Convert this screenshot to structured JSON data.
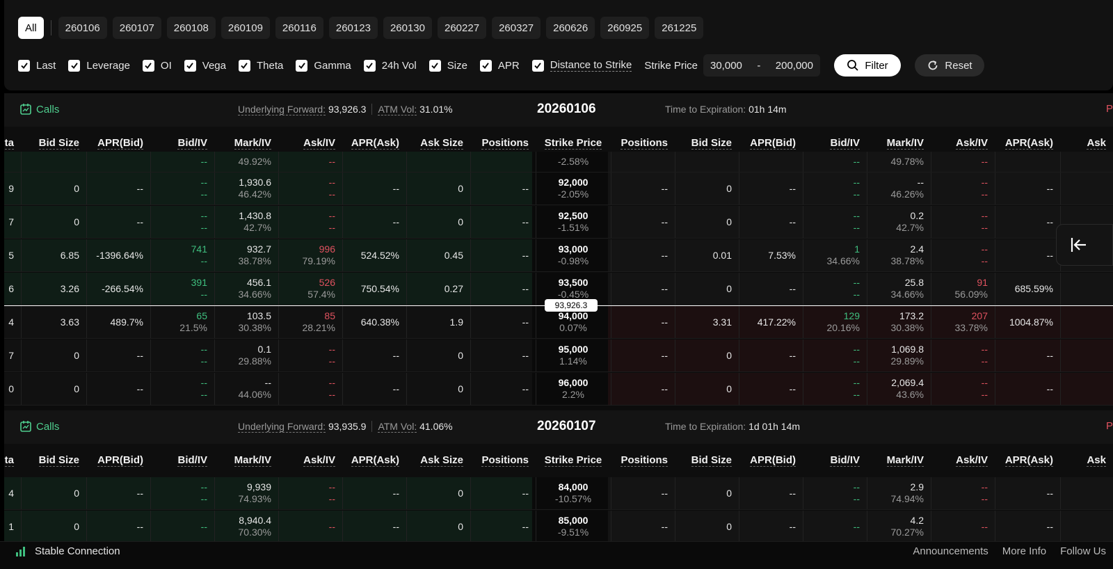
{
  "tabs": [
    "All",
    "260106",
    "260107",
    "260108",
    "260109",
    "260116",
    "260123",
    "260130",
    "260227",
    "260327",
    "260626",
    "260925",
    "261225"
  ],
  "columns_toggle": [
    {
      "label": "Last",
      "checked": true
    },
    {
      "label": "Leverage",
      "checked": true
    },
    {
      "label": "OI",
      "checked": true
    },
    {
      "label": "Vega",
      "checked": true
    },
    {
      "label": "Theta",
      "checked": true
    },
    {
      "label": "Gamma",
      "checked": true
    },
    {
      "label": "24h Vol",
      "checked": true
    },
    {
      "label": "Size",
      "checked": true
    },
    {
      "label": "APR",
      "checked": true
    },
    {
      "label": "Distance to Strike",
      "checked": true
    }
  ],
  "strike_filter": {
    "label": "Strike Price",
    "min": "30,000",
    "dash": "-",
    "max": "200,000",
    "filter_label": "Filter",
    "reset_label": "Reset"
  },
  "headers": [
    "ta",
    "Bid Size",
    "APR(Bid)",
    "Bid/IV",
    "Mark/IV",
    "Ask/IV",
    "APR(Ask)",
    "Ask Size",
    "Positions",
    "Strike Price",
    "Positions",
    "Bid Size",
    "APR(Bid)",
    "Bid/IV",
    "Mark/IV",
    "Ask/IV",
    "APR(Ask)",
    "Ask"
  ],
  "sections": [
    {
      "calls_label": "Calls",
      "forward_label": "Underlying Forward:",
      "forward_value": "93,926.3",
      "atm_label": "ATM Vol:",
      "atm_value": "31.01%",
      "date": "20260106",
      "tte_label": "Time to Expiration:",
      "tte_value": "01h 14m",
      "puts_label": "P",
      "rows": [
        {
          "cls": "itm",
          "c": [
            [
              "",
              ""
            ],
            [
              "",
              ""
            ],
            [
              "",
              ""
            ],
            [
              "--",
              ""
            ],
            [
              "49.92%",
              ""
            ],
            [
              "--",
              ""
            ],
            [
              "",
              ""
            ],
            [
              "",
              ""
            ],
            [
              "",
              ""
            ],
            [
              "-2.58%",
              ""
            ],
            [
              "",
              ""
            ],
            [
              "",
              ""
            ],
            [
              "",
              ""
            ],
            [
              "--",
              ""
            ],
            [
              "49.78%",
              ""
            ],
            [
              "--",
              ""
            ],
            [
              "",
              ""
            ],
            [
              "",
              ""
            ]
          ],
          "partial": true
        },
        {
          "cls": "itm",
          "c": [
            [
              "9",
              ""
            ],
            [
              "0",
              ""
            ],
            [
              "--",
              ""
            ],
            [
              "--",
              "--"
            ],
            [
              "1,930.6",
              "46.42%"
            ],
            [
              "--",
              "--"
            ],
            [
              "--",
              ""
            ],
            [
              "0",
              ""
            ],
            [
              "--",
              ""
            ],
            [
              "92,000",
              "-2.05%"
            ],
            [
              "--",
              ""
            ],
            [
              "0",
              ""
            ],
            [
              "--",
              ""
            ],
            [
              "--",
              "--"
            ],
            [
              "--",
              "46.26%"
            ],
            [
              "--",
              "--"
            ],
            [
              "--",
              ""
            ],
            [
              "",
              ""
            ]
          ]
        },
        {
          "cls": "itm",
          "c": [
            [
              "7",
              ""
            ],
            [
              "0",
              ""
            ],
            [
              "--",
              ""
            ],
            [
              "--",
              "--"
            ],
            [
              "1,430.8",
              "42.7%"
            ],
            [
              "--",
              "--"
            ],
            [
              "--",
              ""
            ],
            [
              "0",
              ""
            ],
            [
              "--",
              ""
            ],
            [
              "92,500",
              "-1.51%"
            ],
            [
              "--",
              ""
            ],
            [
              "0",
              ""
            ],
            [
              "--",
              ""
            ],
            [
              "--",
              "--"
            ],
            [
              "0.2",
              "42.7%"
            ],
            [
              "--",
              "--"
            ],
            [
              "--",
              ""
            ],
            [
              "",
              ""
            ]
          ]
        },
        {
          "cls": "itm",
          "c": [
            [
              "5",
              ""
            ],
            [
              "6.85",
              ""
            ],
            [
              "-1396.64%",
              ""
            ],
            [
              "741",
              "--"
            ],
            [
              "932.7",
              "38.78%"
            ],
            [
              "996",
              "79.19%"
            ],
            [
              "524.52%",
              ""
            ],
            [
              "0.45",
              ""
            ],
            [
              "--",
              ""
            ],
            [
              "93,000",
              "-0.98%"
            ],
            [
              "--",
              ""
            ],
            [
              "0.01",
              ""
            ],
            [
              "7.53%",
              ""
            ],
            [
              "1",
              "34.66%"
            ],
            [
              "2.4",
              "38.78%"
            ],
            [
              "--",
              "--"
            ],
            [
              "--",
              ""
            ],
            [
              "",
              ""
            ]
          ]
        },
        {
          "cls": "itm",
          "c": [
            [
              "6",
              ""
            ],
            [
              "3.26",
              ""
            ],
            [
              "-266.54%",
              ""
            ],
            [
              "391",
              "--"
            ],
            [
              "456.1",
              "34.66%"
            ],
            [
              "526",
              "57.4%"
            ],
            [
              "750.54%",
              ""
            ],
            [
              "0.27",
              ""
            ],
            [
              "--",
              ""
            ],
            [
              "93,500",
              "-0.45%"
            ],
            [
              "--",
              ""
            ],
            [
              "0",
              ""
            ],
            [
              "--",
              ""
            ],
            [
              "--",
              "--"
            ],
            [
              "25.8",
              "34.66%"
            ],
            [
              "91",
              "56.09%"
            ],
            [
              "685.59%",
              ""
            ],
            [
              "",
              ""
            ]
          ]
        },
        {
          "cls": "otm",
          "c": [
            [
              "4",
              ""
            ],
            [
              "3.63",
              ""
            ],
            [
              "489.7%",
              ""
            ],
            [
              "65",
              "21.5%"
            ],
            [
              "103.5",
              "30.38%"
            ],
            [
              "85",
              "28.21%"
            ],
            [
              "640.38%",
              ""
            ],
            [
              "1.9",
              ""
            ],
            [
              "--",
              ""
            ],
            [
              "94,000",
              "0.07%"
            ],
            [
              "--",
              ""
            ],
            [
              "3.31",
              ""
            ],
            [
              "417.22%",
              ""
            ],
            [
              "129",
              "20.16%"
            ],
            [
              "173.2",
              "30.38%"
            ],
            [
              "207",
              "33.78%"
            ],
            [
              "1004.87%",
              ""
            ],
            [
              "",
              ""
            ]
          ],
          "put_itm": true
        },
        {
          "cls": "otm",
          "c": [
            [
              "7",
              ""
            ],
            [
              "0",
              ""
            ],
            [
              "--",
              ""
            ],
            [
              "--",
              "--"
            ],
            [
              "0.1",
              "29.88%"
            ],
            [
              "--",
              "--"
            ],
            [
              "--",
              ""
            ],
            [
              "0",
              ""
            ],
            [
              "--",
              ""
            ],
            [
              "95,000",
              "1.14%"
            ],
            [
              "--",
              ""
            ],
            [
              "0",
              ""
            ],
            [
              "--",
              ""
            ],
            [
              "--",
              "--"
            ],
            [
              "1,069.8",
              "29.89%"
            ],
            [
              "--",
              "--"
            ],
            [
              "--",
              ""
            ],
            [
              "",
              ""
            ]
          ],
          "put_itm": true
        },
        {
          "cls": "otm",
          "c": [
            [
              "0",
              ""
            ],
            [
              "0",
              ""
            ],
            [
              "--",
              ""
            ],
            [
              "--",
              "--"
            ],
            [
              "--",
              "44.06%"
            ],
            [
              "--",
              "--"
            ],
            [
              "--",
              ""
            ],
            [
              "0",
              ""
            ],
            [
              "--",
              ""
            ],
            [
              "96,000",
              "2.2%"
            ],
            [
              "--",
              ""
            ],
            [
              "0",
              ""
            ],
            [
              "--",
              ""
            ],
            [
              "--",
              "--"
            ],
            [
              "2,069.4",
              "43.6%"
            ],
            [
              "--",
              "--"
            ],
            [
              "--",
              ""
            ],
            [
              "",
              ""
            ]
          ],
          "put_itm": true
        }
      ],
      "forward_tag": "93,926.3"
    },
    {
      "calls_label": "Calls",
      "forward_label": "Underlying Forward:",
      "forward_value": "93,935.9",
      "atm_label": "ATM Vol:",
      "atm_value": "41.06%",
      "date": "20260107",
      "tte_label": "Time to Expiration:",
      "tte_value": "1d 01h 14m",
      "puts_label": "P",
      "rows": [
        {
          "cls": "itm",
          "c": [
            [
              "4",
              ""
            ],
            [
              "0",
              ""
            ],
            [
              "--",
              ""
            ],
            [
              "--",
              "--"
            ],
            [
              "9,939",
              "74.93%"
            ],
            [
              "--",
              "--"
            ],
            [
              "--",
              ""
            ],
            [
              "0",
              ""
            ],
            [
              "--",
              ""
            ],
            [
              "84,000",
              "-10.57%"
            ],
            [
              "--",
              ""
            ],
            [
              "0",
              ""
            ],
            [
              "--",
              ""
            ],
            [
              "--",
              "--"
            ],
            [
              "2.9",
              "74.94%"
            ],
            [
              "--",
              "--"
            ],
            [
              "--",
              ""
            ],
            [
              "",
              ""
            ]
          ]
        },
        {
          "cls": "itm",
          "c": [
            [
              "1",
              ""
            ],
            [
              "0",
              ""
            ],
            [
              "--",
              ""
            ],
            [
              "--",
              ""
            ],
            [
              "8,940.4",
              "70.30%"
            ],
            [
              "--",
              ""
            ],
            [
              "--",
              ""
            ],
            [
              "0",
              ""
            ],
            [
              "--",
              ""
            ],
            [
              "85,000",
              "-9.51%"
            ],
            [
              "--",
              ""
            ],
            [
              "0",
              ""
            ],
            [
              "--",
              ""
            ],
            [
              "--",
              ""
            ],
            [
              "4.2",
              "70.27%"
            ],
            [
              "--",
              ""
            ],
            [
              "--",
              ""
            ],
            [
              "",
              ""
            ]
          ]
        }
      ]
    }
  ],
  "footer": {
    "connection": "Stable Connection",
    "links": [
      "Announcements",
      "More Info",
      "Follow Us"
    ]
  },
  "colors": {
    "green": "#3fbf7f",
    "red": "#e0525f",
    "calls_green": "#4fcf8f"
  }
}
